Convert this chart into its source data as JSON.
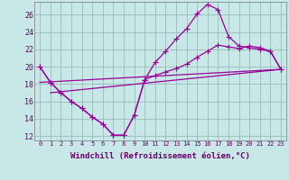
{
  "bg_color": "#c8e8e8",
  "grid_color": "#99bbbb",
  "line_color": "#990099",
  "line_width": 0.9,
  "marker_size": 3,
  "xlabel": "Windchill (Refroidissement éolien,°C)",
  "xlabel_fontsize": 6.5,
  "xlim": [
    -0.5,
    23.5
  ],
  "ylim": [
    11.5,
    27.5
  ],
  "yticks": [
    12,
    14,
    16,
    18,
    20,
    22,
    24,
    26
  ],
  "curve1_x": [
    0,
    1,
    2,
    3,
    4,
    5,
    6,
    7,
    8,
    9,
    10,
    11,
    12,
    13,
    14,
    15,
    16,
    17,
    18,
    19,
    20,
    21,
    22,
    23
  ],
  "curve1_y": [
    20.0,
    18.2,
    17.0,
    16.0,
    15.2,
    14.2,
    13.4,
    12.1,
    12.1,
    14.4,
    18.5,
    20.5,
    21.8,
    23.2,
    24.4,
    26.1,
    27.2,
    26.6,
    23.5,
    22.4,
    22.2,
    22.0,
    21.8,
    19.7
  ],
  "curve2_x": [
    0,
    1,
    2,
    3,
    4,
    5,
    6,
    7,
    8,
    9,
    10,
    11,
    12,
    13,
    14,
    15,
    16,
    17,
    18,
    19,
    20,
    21,
    22,
    23
  ],
  "curve2_y": [
    20.0,
    18.2,
    17.0,
    16.0,
    15.2,
    14.2,
    13.4,
    12.1,
    12.1,
    14.4,
    18.5,
    19.0,
    19.4,
    19.8,
    20.3,
    21.1,
    21.8,
    22.5,
    22.3,
    22.1,
    22.4,
    22.2,
    21.8,
    19.7
  ],
  "line3_x": [
    0,
    23
  ],
  "line3_y": [
    18.2,
    19.7
  ],
  "line4_x": [
    1,
    23
  ],
  "line4_y": [
    17.0,
    19.7
  ]
}
